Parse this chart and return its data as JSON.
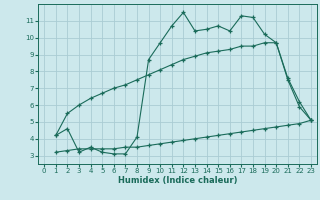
{
  "xlabel": "Humidex (Indice chaleur)",
  "bg_color": "#cce8ec",
  "grid_color": "#aaccd4",
  "line_color": "#1a6b5a",
  "xlim": [
    -0.5,
    23.5
  ],
  "ylim": [
    2.5,
    12.0
  ],
  "yticks": [
    3,
    4,
    5,
    6,
    7,
    8,
    9,
    10,
    11
  ],
  "xticks": [
    0,
    1,
    2,
    3,
    4,
    5,
    6,
    7,
    8,
    9,
    10,
    11,
    12,
    13,
    14,
    15,
    16,
    17,
    18,
    19,
    20,
    21,
    22,
    23
  ],
  "line1_x": [
    1,
    2,
    3,
    4,
    5,
    6,
    7,
    8,
    9,
    10,
    11,
    12,
    13,
    14,
    15,
    16,
    17,
    18,
    19,
    20,
    21,
    22,
    23
  ],
  "line1_y": [
    4.2,
    4.6,
    3.2,
    3.5,
    3.2,
    3.1,
    3.1,
    4.1,
    8.7,
    9.7,
    10.7,
    11.5,
    10.4,
    10.5,
    10.7,
    10.4,
    11.3,
    11.2,
    10.2,
    9.7,
    7.5,
    5.9,
    5.1
  ],
  "line2_x": [
    1,
    2,
    3,
    4,
    5,
    6,
    7,
    8,
    9,
    10,
    11,
    12,
    13,
    14,
    15,
    16,
    17,
    18,
    19,
    20,
    21,
    22,
    23
  ],
  "line2_y": [
    4.2,
    5.5,
    6.0,
    6.4,
    6.7,
    7.0,
    7.2,
    7.5,
    7.8,
    8.1,
    8.4,
    8.7,
    8.9,
    9.1,
    9.2,
    9.3,
    9.5,
    9.5,
    9.7,
    9.7,
    7.6,
    6.2,
    5.1
  ],
  "line3_x": [
    1,
    2,
    3,
    4,
    5,
    6,
    7,
    8,
    9,
    10,
    11,
    12,
    13,
    14,
    15,
    16,
    17,
    18,
    19,
    20,
    21,
    22,
    23
  ],
  "line3_y": [
    3.2,
    3.3,
    3.4,
    3.4,
    3.4,
    3.4,
    3.5,
    3.5,
    3.6,
    3.7,
    3.8,
    3.9,
    4.0,
    4.1,
    4.2,
    4.3,
    4.4,
    4.5,
    4.6,
    4.7,
    4.8,
    4.9,
    5.1
  ]
}
